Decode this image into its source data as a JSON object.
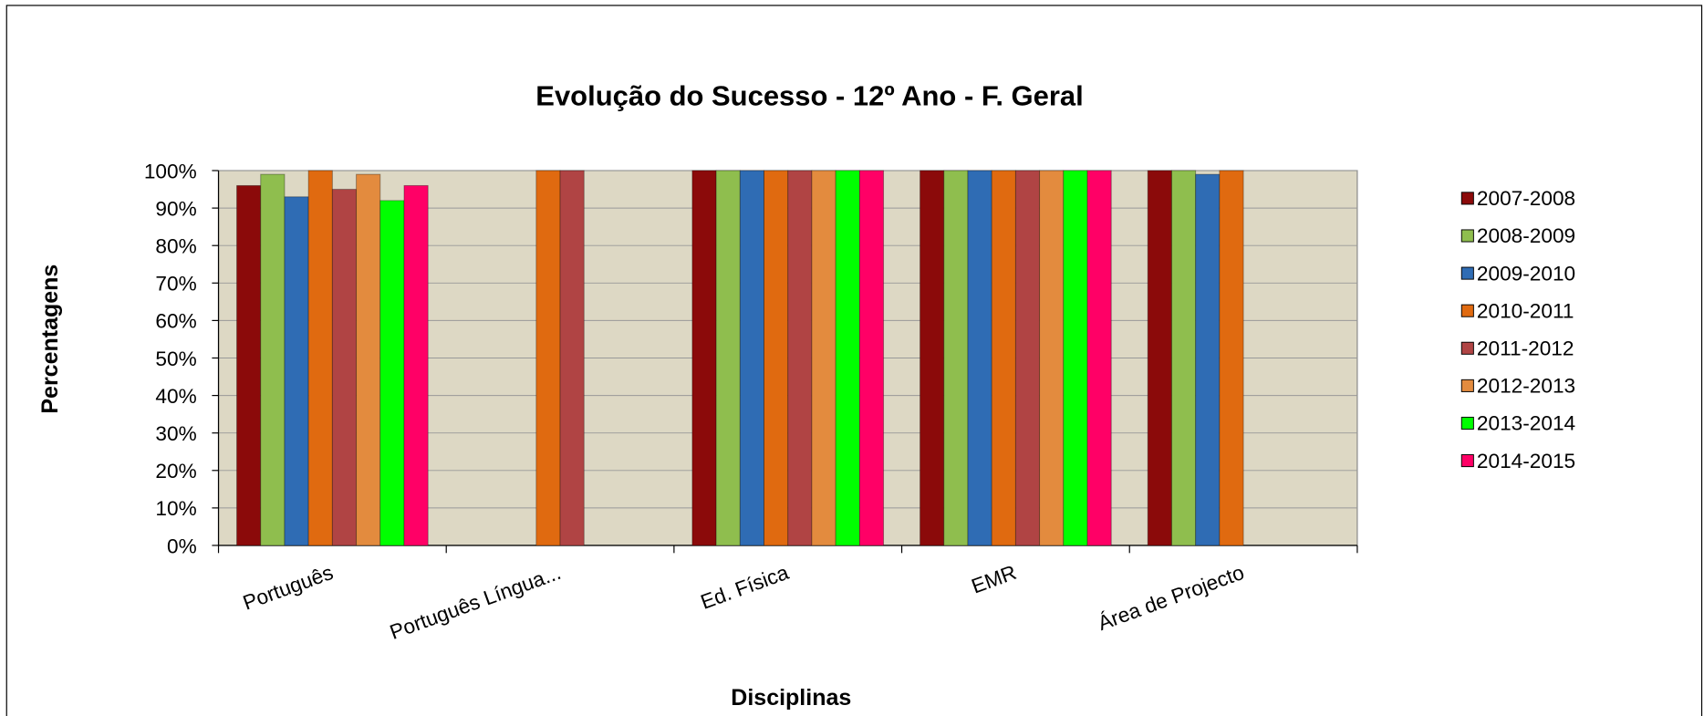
{
  "chart_data": {
    "type": "bar",
    "title": "Evolução do Sucesso - 12º Ano - F. Geral",
    "x_label": "Disciplinas",
    "y_label": "Percentagens",
    "categories": [
      "Português",
      "Português Língua...",
      "Ed. Física",
      "EMR",
      "Área de Projecto"
    ],
    "series": [
      {
        "name": "2007-2008",
        "color": "#8b0a0a",
        "values": [
          96,
          null,
          100,
          100,
          100
        ]
      },
      {
        "name": "2008-2009",
        "color": "#8fbe4e",
        "values": [
          99,
          null,
          100,
          100,
          100
        ]
      },
      {
        "name": "2009-2010",
        "color": "#2f6cb4",
        "values": [
          93,
          null,
          100,
          100,
          99
        ]
      },
      {
        "name": "2010-2011",
        "color": "#e06a10",
        "values": [
          100,
          100,
          100,
          100,
          100
        ]
      },
      {
        "name": "2011-2012",
        "color": "#b04444",
        "values": [
          95,
          100,
          100,
          100,
          null
        ]
      },
      {
        "name": "2012-2013",
        "color": "#e38b3e",
        "values": [
          99,
          null,
          100,
          100,
          null
        ]
      },
      {
        "name": "2013-2014",
        "color": "#00ff00",
        "values": [
          92,
          null,
          100,
          100,
          null
        ]
      },
      {
        "name": "2014-2015",
        "color": "#ff0066",
        "values": [
          96,
          null,
          100,
          100,
          null
        ]
      }
    ],
    "ylim": [
      0,
      100
    ],
    "yticks": [
      {
        "value": 0,
        "label": "0%"
      },
      {
        "value": 10,
        "label": "10%"
      },
      {
        "value": 20,
        "label": "20%"
      },
      {
        "value": 30,
        "label": "30%"
      },
      {
        "value": 40,
        "label": "40%"
      },
      {
        "value": 50,
        "label": "50%"
      },
      {
        "value": 60,
        "label": "60%"
      },
      {
        "value": 70,
        "label": "70%"
      },
      {
        "value": 80,
        "label": "80%"
      },
      {
        "value": 90,
        "label": "90%"
      },
      {
        "value": 100,
        "label": "100%"
      }
    ],
    "grid": true,
    "legend": "right"
  }
}
